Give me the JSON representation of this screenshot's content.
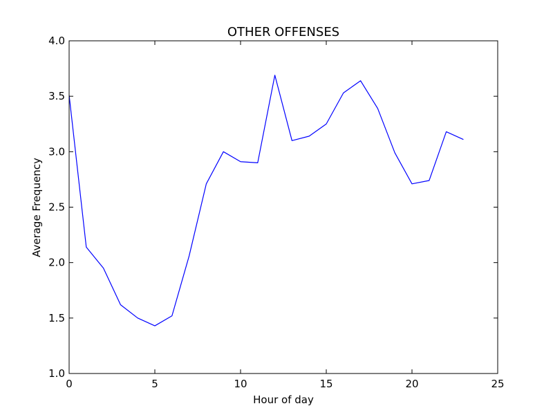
{
  "chart_data": {
    "type": "line",
    "title": "OTHER OFFENSES",
    "xlabel": "Hour of day",
    "ylabel": "Average Frequency",
    "xlim": [
      0,
      25
    ],
    "ylim": [
      1.0,
      4.0
    ],
    "x_ticks": [
      0,
      5,
      10,
      15,
      20,
      25
    ],
    "y_ticks": [
      1.0,
      1.5,
      2.0,
      2.5,
      3.0,
      3.5,
      4.0
    ],
    "x_tick_labels": [
      "0",
      "5",
      "10",
      "15",
      "20",
      "25"
    ],
    "y_tick_labels": [
      "1.0",
      "1.5",
      "2.0",
      "2.5",
      "3.0",
      "3.5",
      "4.0"
    ],
    "grid": false,
    "line_color": "#0000ff",
    "series": [
      {
        "x": [
          0,
          1,
          2,
          3,
          4,
          5,
          6,
          7,
          8,
          9,
          10,
          11,
          12,
          13,
          14,
          15,
          16,
          17,
          18,
          19,
          20,
          21,
          22,
          23
        ],
        "values": [
          3.51,
          2.14,
          1.95,
          1.62,
          1.5,
          1.43,
          1.52,
          2.06,
          2.71,
          3.0,
          2.91,
          2.9,
          3.69,
          3.1,
          3.14,
          3.25,
          3.53,
          3.64,
          3.39,
          2.99,
          2.71,
          2.74,
          3.18,
          3.11
        ]
      }
    ]
  }
}
